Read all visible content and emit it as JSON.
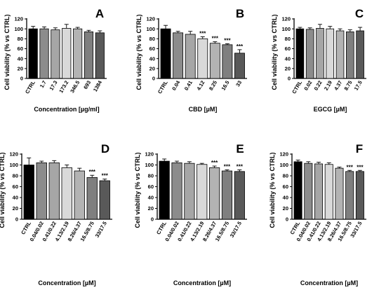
{
  "chart_data": [
    {
      "type": "bar",
      "panel": "A",
      "ylabel": "Cell viability (% vs CTRL)",
      "xlabel": "Concentration [µg/ml]",
      "ylim": [
        0,
        120
      ],
      "yticks": [
        0,
        20,
        40,
        60,
        80,
        100,
        120
      ],
      "categories": [
        "CTRL",
        "1.7",
        "17.3",
        "173.2",
        "346.5",
        "693",
        "1384"
      ],
      "values": [
        100,
        100,
        98,
        101,
        100,
        94,
        92
      ],
      "errors": [
        5,
        4,
        4,
        8,
        3,
        3,
        4
      ],
      "significance": [
        "",
        "",
        "",
        "",
        "",
        "",
        ""
      ],
      "colors": [
        "#000000",
        "#8c8c8c",
        "#a6a6a6",
        "#d9d9d9",
        "#b3b3b3",
        "#7f7f7f",
        "#595959"
      ]
    },
    {
      "type": "bar",
      "panel": "B",
      "ylabel": "Cell viability (% vs CTRL)",
      "xlabel": "CBD [µM]",
      "ylim": [
        0,
        120
      ],
      "yticks": [
        0,
        20,
        40,
        60,
        80,
        100,
        120
      ],
      "categories": [
        "CTRL",
        "0.04",
        "0.41",
        "4.12",
        "8.25",
        "16.5",
        "33"
      ],
      "values": [
        100,
        92,
        89,
        80,
        71,
        68,
        51
      ],
      "errors": [
        7,
        3,
        6,
        4,
        3,
        2,
        7
      ],
      "significance": [
        "",
        "",
        "",
        "***",
        "***",
        "***",
        "***"
      ],
      "colors": [
        "#000000",
        "#8c8c8c",
        "#a6a6a6",
        "#d9d9d9",
        "#b3b3b3",
        "#7f7f7f",
        "#595959"
      ]
    },
    {
      "type": "bar",
      "panel": "C",
      "ylabel": "Cell viability (% vs CTRL)",
      "xlabel": "EGCG [µM]",
      "ylim": [
        0,
        120
      ],
      "yticks": [
        0,
        20,
        40,
        60,
        80,
        100,
        120
      ],
      "categories": [
        "CTRL",
        "0.02",
        "0.22",
        "2.19",
        "4.37",
        "8.75",
        "17.5"
      ],
      "values": [
        100,
        99,
        101,
        100,
        96,
        94,
        96
      ],
      "errors": [
        3,
        3,
        8,
        5,
        4,
        4,
        7
      ],
      "significance": [
        "",
        "",
        "",
        "",
        "",
        "",
        ""
      ],
      "colors": [
        "#000000",
        "#8c8c8c",
        "#a6a6a6",
        "#d9d9d9",
        "#b3b3b3",
        "#7f7f7f",
        "#595959"
      ]
    },
    {
      "type": "bar",
      "panel": "D",
      "ylabel": "Cell viability (% vs CTRL)",
      "xlabel": "Concentration [µM]",
      "ylim": [
        0,
        120
      ],
      "yticks": [
        0,
        20,
        40,
        60,
        80,
        100,
        120
      ],
      "categories": [
        "CTRL",
        "0.04/0.02",
        "0.41/0.22",
        "4.13/2.19",
        "8.26/4.37",
        "16.5/8.75",
        "33/17.5"
      ],
      "values": [
        100,
        104,
        104,
        95,
        89,
        77,
        71
      ],
      "errors": [
        13,
        3,
        4,
        5,
        5,
        4,
        3
      ],
      "significance": [
        "",
        "",
        "",
        "",
        "",
        "***",
        "***"
      ],
      "colors": [
        "#000000",
        "#8c8c8c",
        "#a6a6a6",
        "#d9d9d9",
        "#b3b3b3",
        "#7f7f7f",
        "#595959"
      ]
    },
    {
      "type": "bar",
      "panel": "E",
      "ylabel": "Cell viability (% vs CTRL)",
      "xlabel": "Concentration [µM]",
      "ylim": [
        0,
        120
      ],
      "yticks": [
        0,
        20,
        40,
        60,
        80,
        100,
        120
      ],
      "categories": [
        "CTRL",
        "0.04/0.02",
        "0.41/0.22",
        "4.13/2.19",
        "8.26/4.37",
        "16.5/8.75",
        "33/17.5"
      ],
      "values": [
        107,
        104,
        103,
        101,
        95,
        89,
        88
      ],
      "errors": [
        4,
        3,
        3,
        2,
        3,
        2,
        3
      ],
      "significance": [
        "",
        "",
        "",
        "",
        "***",
        "***",
        "***"
      ],
      "colors": [
        "#000000",
        "#8c8c8c",
        "#a6a6a6",
        "#d9d9d9",
        "#b3b3b3",
        "#7f7f7f",
        "#595959"
      ]
    },
    {
      "type": "bar",
      "panel": "F",
      "ylabel": "Cell viability (% vs CTRL)",
      "xlabel": "Concentration [µM]",
      "ylim": [
        0,
        120
      ],
      "yticks": [
        0,
        20,
        40,
        60,
        80,
        100,
        120
      ],
      "categories": [
        "CTRL",
        "0.04/0.02",
        "0.41/0.22",
        "4.13/2.19",
        "8.26/4.37",
        "16.5/8.75",
        "33/17.5"
      ],
      "values": [
        106,
        103,
        102,
        101,
        94,
        88,
        88
      ],
      "errors": [
        3,
        3,
        3,
        3,
        2,
        2,
        2
      ],
      "significance": [
        "",
        "",
        "",
        "",
        "",
        "***",
        "***"
      ],
      "colors": [
        "#000000",
        "#8c8c8c",
        "#a6a6a6",
        "#d9d9d9",
        "#b3b3b3",
        "#7f7f7f",
        "#595959"
      ]
    }
  ]
}
